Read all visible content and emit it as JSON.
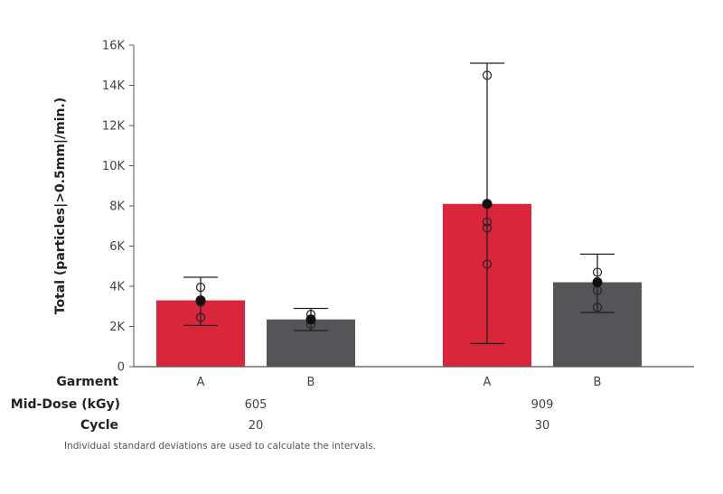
{
  "chart_data": {
    "type": "bar",
    "ylabel": "Total (particles|>0.5mm|/min.)",
    "ylim": [
      0,
      16000
    ],
    "yticks": [
      0,
      2000,
      4000,
      6000,
      8000,
      10000,
      12000,
      14000,
      16000
    ],
    "ytick_labels": [
      "0",
      "2K",
      "4K",
      "6K",
      "8K",
      "10K",
      "12K",
      "14K",
      "16K"
    ],
    "grid": false,
    "row_labels": [
      "Garment",
      "Mid-Dose (kGy)",
      "Cycle"
    ],
    "groups": [
      {
        "dose": "605",
        "cycle": "20"
      },
      {
        "dose": "909",
        "cycle": "30"
      }
    ],
    "bars": [
      {
        "garment": "A",
        "group": 0,
        "value": 3300,
        "err_low": 2050,
        "err_high": 4450,
        "points": [
          3950,
          3200,
          2450
        ],
        "color": "#d9263a"
      },
      {
        "garment": "B",
        "group": 0,
        "value": 2350,
        "err_low": 1800,
        "err_high": 2900,
        "points": [
          2600,
          2100
        ],
        "color": "#545558"
      },
      {
        "garment": "A",
        "group": 1,
        "value": 8100,
        "err_low": 1150,
        "err_high": 15100,
        "points": [
          14500,
          7200,
          6900,
          5100
        ],
        "color": "#d9263a"
      },
      {
        "garment": "B",
        "group": 1,
        "value": 4200,
        "err_low": 2700,
        "err_high": 5600,
        "points": [
          4700,
          3800,
          2950
        ],
        "color": "#545558"
      }
    ],
    "footnote": "Individual standard deviations are used to calculate the intervals."
  }
}
